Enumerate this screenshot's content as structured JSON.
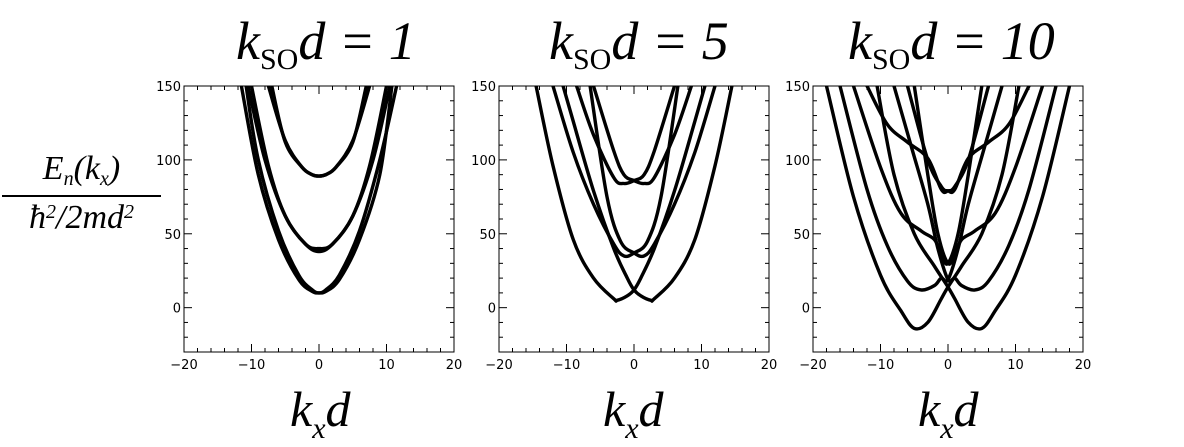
{
  "y_label": {
    "numerator": "E",
    "numerator_sub": "n",
    "numerator_args": "(k",
    "numerator_args_sub": "x",
    "numerator_close": ")",
    "denominator": "ħ",
    "denominator_exp": "2",
    "denominator_mid": "/2md",
    "denominator_exp2": "2"
  },
  "colors": {
    "curve": "#000000",
    "axis": "#000000",
    "background": "#ffffff"
  },
  "chart_data": [
    {
      "type": "line",
      "title_main": "k",
      "title_sub": "SO",
      "title_rest": "d = 1",
      "param": 1,
      "xlabel": "k",
      "xlabel_sub": "x",
      "xlabel_rest": "d",
      "xlim": [
        -20,
        20
      ],
      "ylim": [
        -30,
        150
      ],
      "xticks": [
        "−20",
        "−10",
        "0",
        "10",
        "20"
      ],
      "yticks": [
        "0",
        "50",
        "100",
        "150"
      ],
      "grid": false,
      "series": [
        {
          "x": [
            -11.5,
            -9,
            -6,
            -3,
            -1,
            0,
            1,
            3,
            6,
            9,
            10.8
          ],
          "y": [
            150,
            90,
            46,
            19,
            11,
            10,
            11,
            19,
            46,
            90,
            150
          ]
        },
        {
          "x": [
            -10.8,
            -9,
            -6,
            -3,
            -1,
            0,
            1,
            3,
            6,
            9,
            11.5
          ],
          "y": [
            150,
            100,
            52,
            22,
            12,
            10,
            12,
            22,
            52,
            100,
            150
          ]
        },
        {
          "x": [
            -10.5,
            -8,
            -5,
            -2,
            0,
            2,
            5,
            8,
            10.5
          ],
          "y": [
            150,
            100,
            62,
            43,
            40,
            43,
            62,
            100,
            150
          ]
        },
        {
          "x": [
            -10,
            -7.5,
            -5,
            -2,
            0,
            2,
            5,
            7.5,
            10
          ],
          "y": [
            150,
            96,
            62,
            43,
            38,
            43,
            62,
            96,
            150
          ]
        },
        {
          "x": [
            -7.5,
            -5,
            -2.5,
            -1,
            0,
            1,
            2.5,
            5,
            7.5
          ],
          "y": [
            150,
            113,
            95,
            90,
            89,
            90,
            95,
            113,
            150
          ]
        },
        {
          "x": [
            -7,
            -5,
            -2.5,
            -1,
            0,
            1,
            2.5,
            5,
            7
          ],
          "y": [
            150,
            112,
            95,
            90,
            89,
            90,
            95,
            112,
            150
          ]
        }
      ]
    },
    {
      "type": "line",
      "title_main": "k",
      "title_sub": "SO",
      "title_rest": "d = 5",
      "param": 5,
      "xlabel": "k",
      "xlabel_sub": "x",
      "xlabel_rest": "d",
      "xlim": [
        -20,
        20
      ],
      "ylim": [
        -30,
        150
      ],
      "xticks": [
        "−20",
        "−10",
        "0",
        "10",
        "20"
      ],
      "yticks": [
        "0",
        "50",
        "100",
        "150"
      ],
      "grid": false,
      "series": [
        {
          "x": [
            -14.5,
            -12,
            -9,
            -6,
            -3,
            -2.5,
            -1,
            0,
            1,
            3,
            6,
            9,
            10.5
          ],
          "y": [
            150,
            96,
            46,
            20,
            6,
            5,
            8,
            12,
            20,
            40,
            79,
            126,
            150
          ]
        },
        {
          "x": [
            -10.5,
            -9,
            -6,
            -3,
            -1,
            0,
            1,
            2.5,
            3,
            6,
            9,
            12,
            14.5
          ],
          "y": [
            150,
            126,
            79,
            40,
            20,
            12,
            8,
            5,
            6,
            20,
            46,
            96,
            150
          ]
        },
        {
          "x": [
            -12,
            -9,
            -6,
            -3,
            -1.5,
            0,
            2,
            4,
            6.5
          ],
          "y": [
            150,
            105,
            70,
            43,
            35,
            37,
            45,
            75,
            150
          ]
        },
        {
          "x": [
            -6.5,
            -4,
            -2,
            0,
            1.5,
            3,
            6,
            9,
            12
          ],
          "y": [
            150,
            75,
            45,
            37,
            35,
            43,
            70,
            105,
            150
          ]
        },
        {
          "x": [
            -8.5,
            -6,
            -3,
            -1.5,
            0,
            1.5,
            3,
            6
          ],
          "y": [
            150,
            117,
            88,
            84,
            86,
            90,
            106,
            150
          ]
        },
        {
          "x": [
            -6,
            -3,
            -1.5,
            0,
            1.5,
            3,
            6,
            8.5
          ],
          "y": [
            150,
            106,
            90,
            86,
            84,
            88,
            117,
            150
          ]
        }
      ]
    },
    {
      "type": "line",
      "title_main": "k",
      "title_sub": "SO",
      "title_rest": "d = 10",
      "param": 10,
      "xlabel": "k",
      "xlabel_sub": "x",
      "xlabel_rest": "d",
      "xlim": [
        -20,
        20
      ],
      "ylim": [
        -30,
        150
      ],
      "xticks": [
        "−20",
        "−10",
        "0",
        "10",
        "20"
      ],
      "yticks": [
        "0",
        "50",
        "100",
        "150"
      ],
      "grid": false,
      "series": [
        {
          "x": [
            -18,
            -14,
            -10,
            -7,
            -5,
            -3,
            -1,
            0,
            2,
            5,
            8,
            10.5
          ],
          "y": [
            150,
            75,
            22,
            -2,
            -14,
            -10,
            6,
            14,
            28,
            50,
            90,
            150
          ]
        },
        {
          "x": [
            -10.5,
            -8,
            -5,
            -2,
            0,
            1,
            3,
            5,
            7,
            10,
            14,
            18
          ],
          "y": [
            150,
            90,
            50,
            28,
            14,
            6,
            -10,
            -14,
            -2,
            22,
            75,
            150
          ]
        },
        {
          "x": [
            -16,
            -12,
            -9,
            -6,
            -4,
            -2,
            -1,
            0,
            1.5,
            3,
            5.5,
            8
          ],
          "y": [
            150,
            80,
            42,
            18,
            12,
            15,
            20,
            19,
            40,
            70,
            110,
            150
          ]
        },
        {
          "x": [
            -8,
            -5.5,
            -3,
            -1.5,
            0,
            1,
            2,
            4,
            6,
            9,
            12,
            16
          ],
          "y": [
            150,
            110,
            70,
            40,
            19,
            20,
            15,
            12,
            18,
            42,
            80,
            150
          ]
        },
        {
          "x": [
            -14,
            -10,
            -7,
            -4,
            -2,
            -1,
            0,
            1.5,
            3,
            5
          ],
          "y": [
            150,
            95,
            64,
            52,
            46,
            36,
            30,
            50,
            90,
            150
          ]
        },
        {
          "x": [
            -5,
            -3,
            -1.5,
            0,
            1,
            2,
            4,
            7,
            10,
            14
          ],
          "y": [
            150,
            90,
            50,
            30,
            36,
            46,
            52,
            64,
            95,
            150
          ]
        },
        {
          "x": [
            -12,
            -9,
            -6,
            -3,
            -1,
            0,
            1,
            3,
            6
          ],
          "y": [
            150,
            124,
            112,
            101,
            80,
            79,
            82,
            100,
            150
          ]
        },
        {
          "x": [
            -6,
            -3,
            -1,
            0,
            1,
            3,
            6,
            9,
            12
          ],
          "y": [
            150,
            100,
            82,
            79,
            80,
            101,
            112,
            124,
            150
          ]
        }
      ]
    }
  ]
}
